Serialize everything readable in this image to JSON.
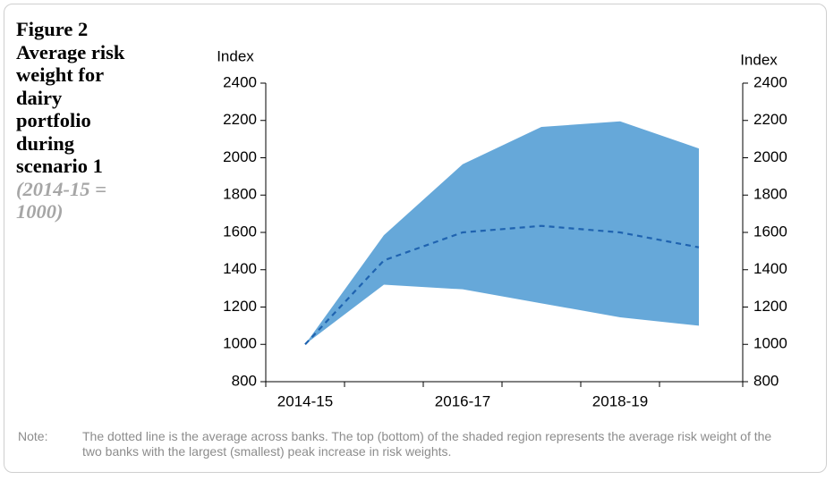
{
  "chart_data": {
    "type": "band-line",
    "title": "Figure 2 Average risk weight for dairy portfolio during scenario 1",
    "subtitle": "(2014-15 = 1000)",
    "y_label": "Index",
    "y2_label": "Index",
    "categories": [
      "2014-15",
      null,
      "2016-17",
      null,
      "2018-19",
      null
    ],
    "band": {
      "color": "#66a8d9",
      "upper": [
        1000,
        1585,
        1965,
        2165,
        2195,
        2050
      ],
      "lower": [
        1000,
        1320,
        1295,
        1220,
        1145,
        1100
      ]
    },
    "series": [
      {
        "color": "#1f63b0",
        "dash": true,
        "values": [
          1000,
          1450,
          1600,
          1635,
          1600,
          1520
        ]
      }
    ],
    "ylim": [
      800,
      2400
    ],
    "yticks": [
      800,
      1000,
      1200,
      1400,
      1600,
      1800,
      2000,
      2200,
      2400
    ],
    "y2lim": [
      800,
      2400
    ],
    "y2ticks": [
      800,
      1000,
      1200,
      1400,
      1600,
      1800,
      2000,
      2200,
      2400
    ],
    "note_label": "Note:",
    "note": "The dotted line is the average across banks. The top (bottom) of the shaded region represents the average risk weight of the two banks with the largest (smallest) peak increase in risk weights."
  }
}
